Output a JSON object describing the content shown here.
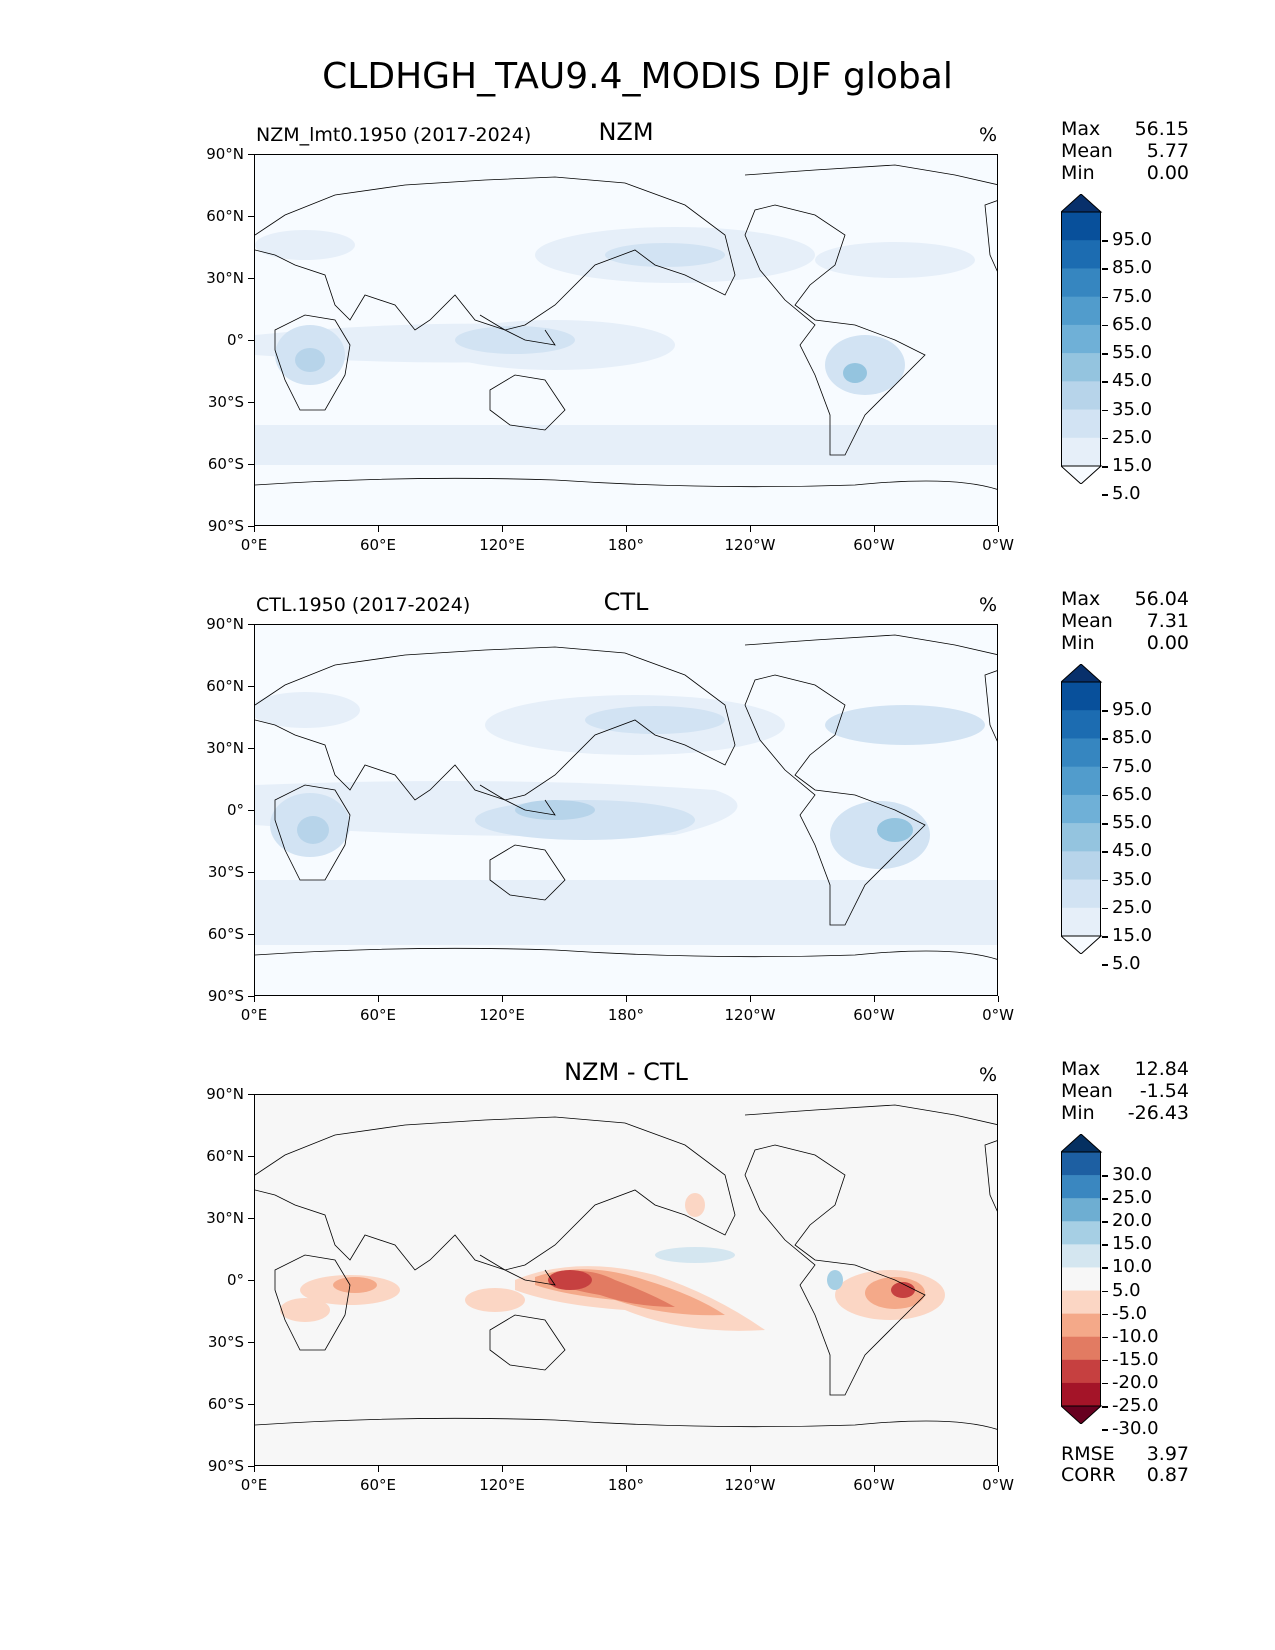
{
  "figure_title": "CLDHGH_TAU9.4_MODIS DJF global",
  "chart_data": [
    {
      "type": "heatmap",
      "panel": "test",
      "title": "NZM",
      "left_title": "NZM_lmt0.1950 (2017-2024)",
      "units": "%",
      "x_ticks": [
        "0°E",
        "60°E",
        "120°E",
        "180°",
        "120°W",
        "60°W",
        "0°W"
      ],
      "y_ticks": [
        "90°N",
        "60°N",
        "30°N",
        "0°",
        "30°S",
        "60°S",
        "90°S"
      ],
      "stats": [
        {
          "label": "Max",
          "value": "56.15"
        },
        {
          "label": "Mean",
          "value": "5.77"
        },
        {
          "label": "Min",
          "value": "0.00"
        }
      ],
      "colorbar": {
        "labels": [
          "95.0",
          "85.0",
          "75.0",
          "65.0",
          "55.0",
          "45.0",
          "35.0",
          "25.0",
          "15.0",
          "5.0"
        ],
        "colors": [
          "#08306b",
          "#08509b",
          "#1c6cb1",
          "#3686c0",
          "#519ccc",
          "#6fb0d7",
          "#94c4df",
          "#b7d4ea",
          "#d2e3f3",
          "#e6eff9",
          "#f7fbff"
        ],
        "extend": "both"
      }
    },
    {
      "type": "heatmap",
      "panel": "reference",
      "title": "CTL",
      "left_title": "CTL.1950 (2017-2024)",
      "units": "%",
      "x_ticks": [
        "0°E",
        "60°E",
        "120°E",
        "180°",
        "120°W",
        "60°W",
        "0°W"
      ],
      "y_ticks": [
        "90°N",
        "60°N",
        "30°N",
        "0°",
        "30°S",
        "60°S",
        "90°S"
      ],
      "stats": [
        {
          "label": "Max",
          "value": "56.04"
        },
        {
          "label": "Mean",
          "value": "7.31"
        },
        {
          "label": "Min",
          "value": "0.00"
        }
      ],
      "colorbar": {
        "labels": [
          "95.0",
          "85.0",
          "75.0",
          "65.0",
          "55.0",
          "45.0",
          "35.0",
          "25.0",
          "15.0",
          "5.0"
        ],
        "colors": [
          "#08306b",
          "#08509b",
          "#1c6cb1",
          "#3686c0",
          "#519ccc",
          "#6fb0d7",
          "#94c4df",
          "#b7d4ea",
          "#d2e3f3",
          "#e6eff9",
          "#f7fbff"
        ],
        "extend": "both"
      }
    },
    {
      "type": "heatmap",
      "panel": "difference",
      "title": "NZM - CTL",
      "left_title": "",
      "units": "%",
      "x_ticks": [
        "0°E",
        "60°E",
        "120°E",
        "180°",
        "120°W",
        "60°W",
        "0°W"
      ],
      "y_ticks": [
        "90°N",
        "60°N",
        "30°N",
        "0°",
        "30°S",
        "60°S",
        "90°S"
      ],
      "stats": [
        {
          "label": "Max",
          "value": "12.84"
        },
        {
          "label": "Mean",
          "value": "-1.54"
        },
        {
          "label": "Min",
          "value": "-26.43"
        }
      ],
      "errors": [
        {
          "label": "RMSE",
          "value": "3.97"
        },
        {
          "label": "CORR",
          "value": "0.87"
        }
      ],
      "colorbar": {
        "labels": [
          "30.0",
          "25.0",
          "20.0",
          "15.0",
          "10.0",
          "5.0",
          "-5.0",
          "-10.0",
          "-15.0",
          "-20.0",
          "-25.0",
          "-30.0"
        ],
        "colors": [
          "#053061",
          "#1d5fa2",
          "#3a87c0",
          "#6eaed2",
          "#a6cfe4",
          "#d4e6f0",
          "#f7f7f7",
          "#fbd6c4",
          "#f4a989",
          "#e27b62",
          "#c64040",
          "#a41428",
          "#67001f"
        ],
        "extend": "both"
      }
    }
  ]
}
